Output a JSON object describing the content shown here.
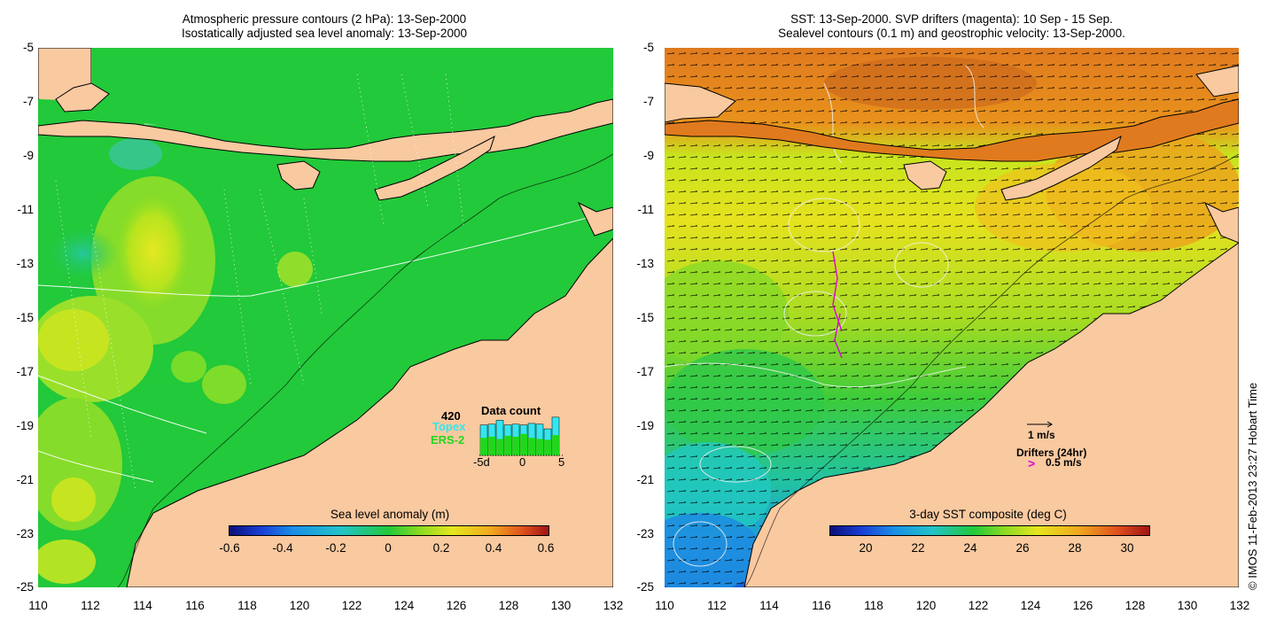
{
  "left_panel": {
    "title_line1": "Atmospheric pressure contours (2 hPa): 13-Sep-2000",
    "title_line2": "Isostatically adjusted sea level anomaly: 13-Sep-2000",
    "y_ticks": [
      "-5",
      "-7",
      "-9",
      "-11",
      "-13",
      "-15",
      "-17",
      "-19",
      "-21",
      "-23",
      "-25"
    ],
    "x_ticks": [
      "110",
      "112",
      "114",
      "116",
      "118",
      "120",
      "122",
      "124",
      "126",
      "128",
      "130",
      "132"
    ],
    "colorbar": {
      "title": "Sea level anomaly (m)",
      "labels": [
        "-0.6",
        "-0.4",
        "-0.2",
        "0",
        "0.2",
        "0.4",
        "0.6"
      ],
      "range": [
        -0.6,
        0.6
      ]
    },
    "data_count": {
      "total": "420",
      "topex_label": "Topex",
      "ers_label": "ERS-2",
      "title": "Data count",
      "x_labels": [
        "-5d",
        "0",
        "5"
      ],
      "topex_color": "#33e6f0",
      "ers_color": "#22d61e",
      "bars": [
        {
          "topex": 0.78,
          "ers": 0.45
        },
        {
          "topex": 0.8,
          "ers": 0.48
        },
        {
          "topex": 0.9,
          "ers": 0.42
        },
        {
          "topex": 0.78,
          "ers": 0.5
        },
        {
          "topex": 0.8,
          "ers": 0.48
        },
        {
          "topex": 0.78,
          "ers": 0.55
        },
        {
          "topex": 0.82,
          "ers": 0.45
        },
        {
          "topex": 0.8,
          "ers": 0.42
        },
        {
          "topex": 0.68,
          "ers": 0.4
        },
        {
          "topex": 0.98,
          "ers": 0.52
        }
      ]
    }
  },
  "right_panel": {
    "title_line1": "SST: 13-Sep-2000. SVP drifters (magenta): 10 Sep - 15 Sep.",
    "title_line2": "Sealevel contours (0.1 m) and geostrophic velocity: 13-Sep-2000.",
    "y_ticks": [
      "-5",
      "-7",
      "-9",
      "-11",
      "-13",
      "-15",
      "-17",
      "-19",
      "-21",
      "-23",
      "-25"
    ],
    "x_ticks": [
      "110",
      "112",
      "114",
      "116",
      "118",
      "120",
      "122",
      "124",
      "126",
      "128",
      "130",
      "132"
    ],
    "velocity_legend": "1 m/s",
    "drifter_legend_title": "Drifters (24hr)",
    "drifter_legend_value": "0.5 m/s",
    "drifter_color": "#e000e0",
    "colorbar": {
      "title": "3-day SST composite (deg C)",
      "labels": [
        "20",
        "22",
        "24",
        "26",
        "28",
        "30"
      ],
      "range": [
        18.6,
        30.8
      ]
    }
  },
  "colors": {
    "land": "#f9c9a0",
    "ocean_green": "#22c93a",
    "warm_sst": "#e8861c"
  },
  "watermark": "© IMOS 11-Feb-2013 23:27 Hobart Time"
}
